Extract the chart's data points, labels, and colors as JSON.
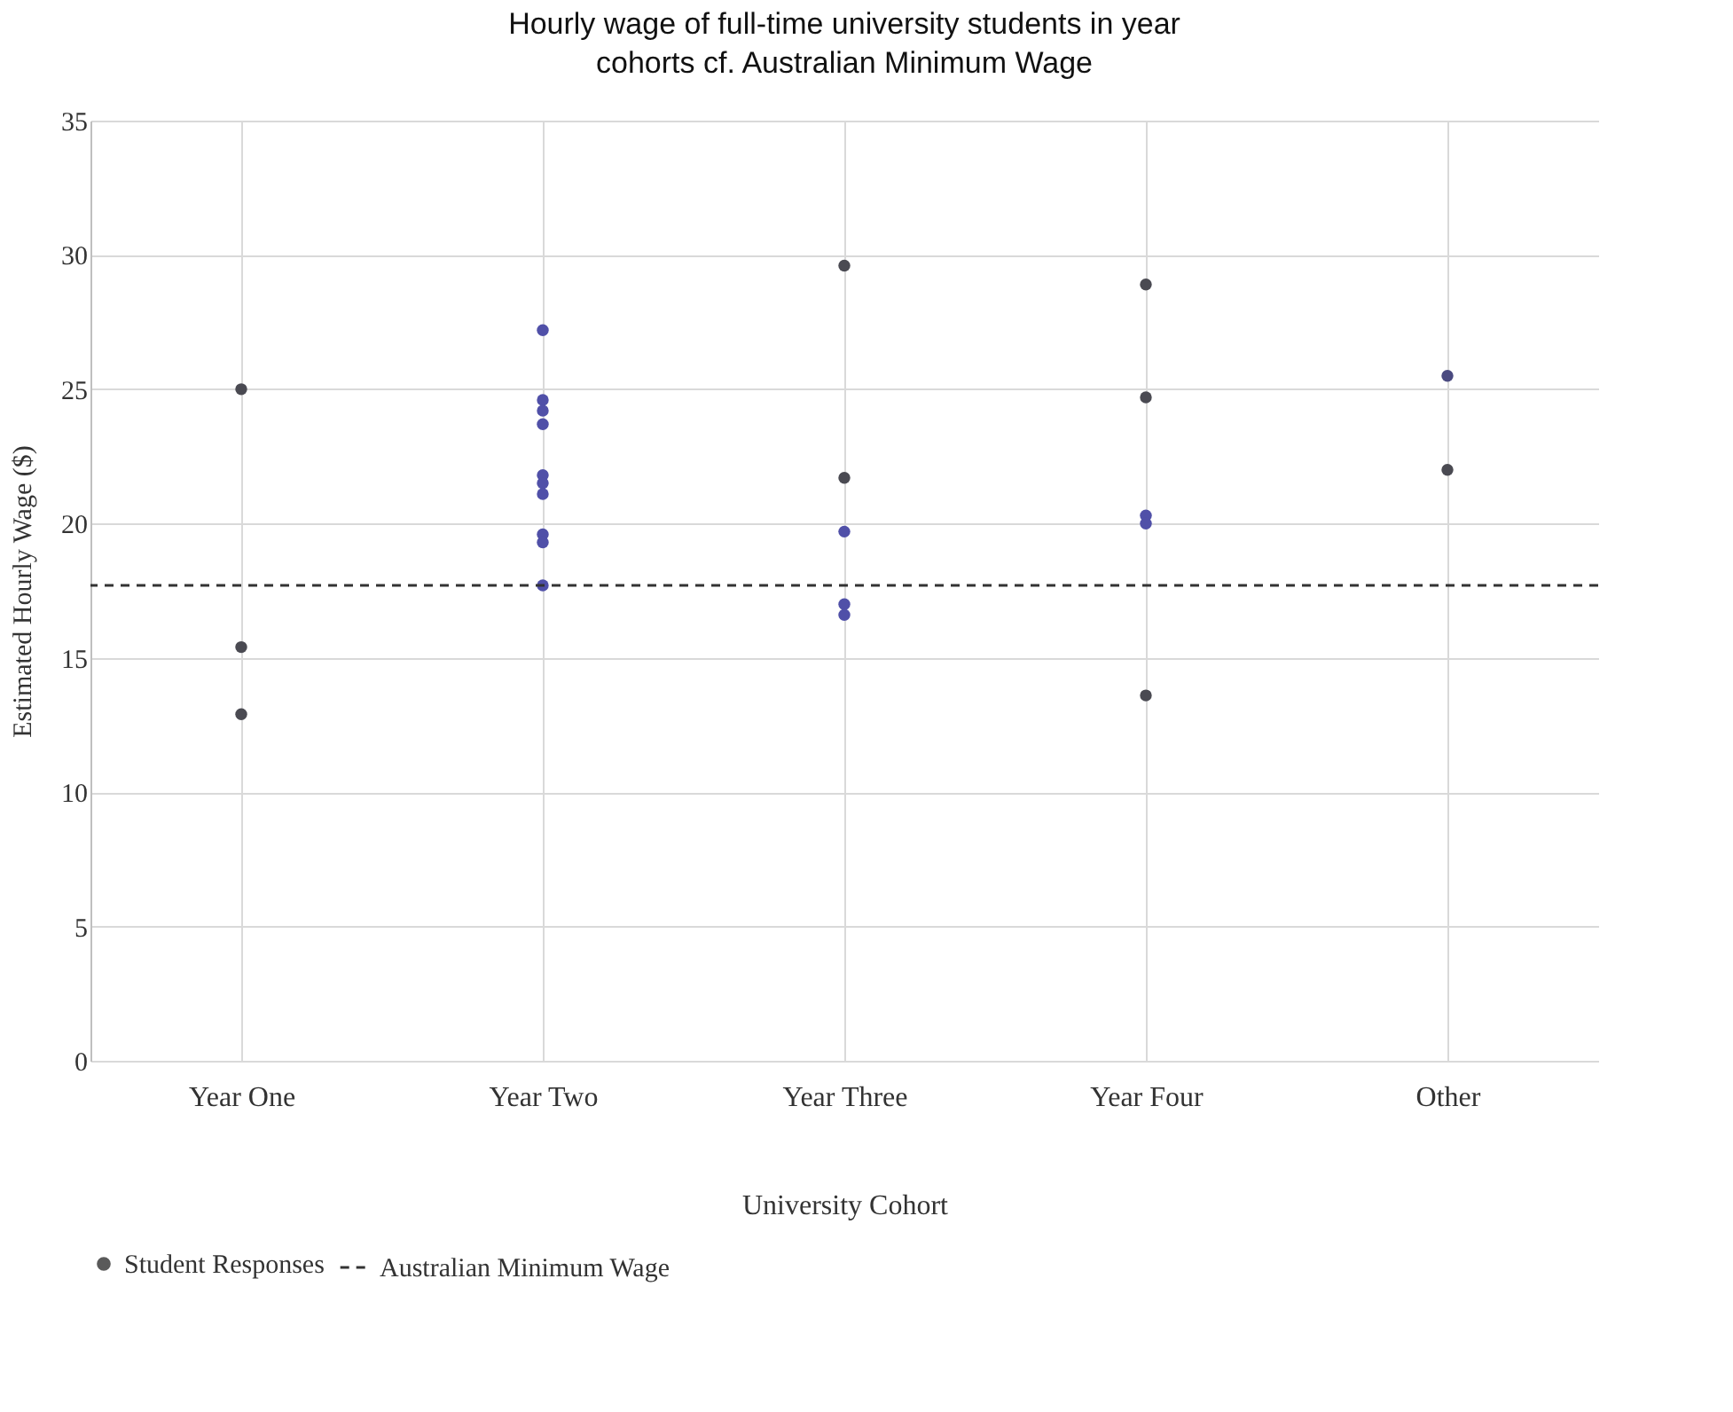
{
  "chart_data": {
    "type": "scatter",
    "title": "Hourly wage of full-time university students in year cohorts cf. Australian Minimum Wage",
    "xlabel": "University Cohort",
    "ylabel": "Estimated Hourly Wage ($)",
    "categories": [
      "Year One",
      "Year Two",
      "Year Three",
      "Year Four",
      "Other"
    ],
    "series": [
      {
        "name": "Student Responses",
        "color": "#5a5a5a",
        "x": [
          "Year One",
          "Year One",
          "Year One",
          "Year Two",
          "Year Two",
          "Year Two",
          "Year Two",
          "Year Two",
          "Year Two",
          "Year Two",
          "Year Two",
          "Year Two",
          "Year Two",
          "Year Three",
          "Year Three",
          "Year Three",
          "Year Three",
          "Year Three",
          "Year Four",
          "Year Four",
          "Year Four",
          "Year Four",
          "Year Four",
          "Other",
          "Other"
        ],
        "values": [
          25.0,
          15.4,
          12.9,
          27.2,
          24.6,
          24.2,
          23.7,
          21.8,
          21.5,
          21.1,
          19.6,
          19.3,
          17.7,
          29.6,
          21.7,
          19.7,
          17.0,
          16.6,
          28.9,
          24.7,
          20.3,
          20.0,
          13.6,
          25.5,
          22.0
        ],
        "colors": [
          "#4a4a52",
          "#4a4a52",
          "#4a4a52",
          "#5050a8",
          "#5050a8",
          "#5050a8",
          "#5050a8",
          "#5050a8",
          "#5050a8",
          "#5050a8",
          "#5050a8",
          "#5050a8",
          "#5050a8",
          "#4a4a52",
          "#4a4a52",
          "#5050a8",
          "#5050a8",
          "#5050a8",
          "#4a4a52",
          "#4a4a52",
          "#5050a8",
          "#5050a8",
          "#4a4a52",
          "#4a4a80",
          "#4a4a52"
        ]
      }
    ],
    "ref_lines": [
      {
        "axis": "y",
        "value": 17.7,
        "label": "Australian Minimum Wage",
        "color": "#333333",
        "line_style": "dashed"
      }
    ],
    "ylim": [
      0,
      35
    ],
    "yticks": [
      0,
      5,
      10,
      15,
      20,
      25,
      30,
      35
    ],
    "grid": true,
    "legend": "bottom",
    "marker": "circle"
  }
}
